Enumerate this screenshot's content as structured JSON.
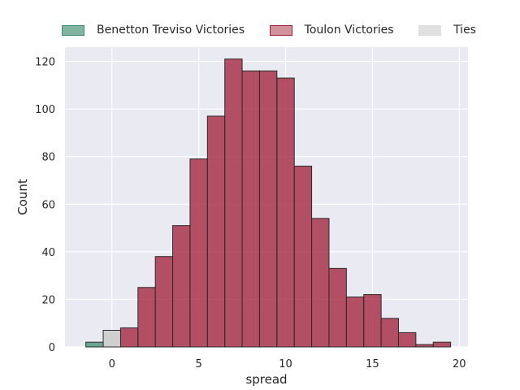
{
  "chart_data": {
    "type": "bar",
    "xlabel": "spread",
    "ylabel": "Count",
    "xlim": [
      -2.7,
      20.5
    ],
    "ylim": [
      0,
      126
    ],
    "xticks": [
      0,
      5,
      10,
      15,
      20
    ],
    "yticks": [
      0,
      20,
      40,
      60,
      80,
      100,
      120
    ],
    "grid": true,
    "legend_position": "top",
    "bin_width": 1,
    "series": [
      {
        "name": "Benetton Treviso Victories",
        "color": "#3e8e6f",
        "bins": [
          {
            "x0": -1.5,
            "x1": -0.5,
            "count": 2
          }
        ]
      },
      {
        "name": "Toulon Victories",
        "color": "#a3233c",
        "bins": [
          {
            "x0": 0.5,
            "x1": 1.5,
            "count": 8
          },
          {
            "x0": 1.5,
            "x1": 2.5,
            "count": 25
          },
          {
            "x0": 2.5,
            "x1": 3.5,
            "count": 38
          },
          {
            "x0": 3.5,
            "x1": 4.5,
            "count": 51
          },
          {
            "x0": 4.5,
            "x1": 5.5,
            "count": 79
          },
          {
            "x0": 5.5,
            "x1": 6.5,
            "count": 97
          },
          {
            "x0": 6.5,
            "x1": 7.5,
            "count": 121
          },
          {
            "x0": 7.5,
            "x1": 8.5,
            "count": 116
          },
          {
            "x0": 8.5,
            "x1": 9.5,
            "count": 116
          },
          {
            "x0": 9.5,
            "x1": 10.5,
            "count": 113
          },
          {
            "x0": 10.5,
            "x1": 11.5,
            "count": 76
          },
          {
            "x0": 11.5,
            "x1": 12.5,
            "count": 54
          },
          {
            "x0": 12.5,
            "x1": 13.5,
            "count": 33
          },
          {
            "x0": 13.5,
            "x1": 14.5,
            "count": 21
          },
          {
            "x0": 14.5,
            "x1": 15.5,
            "count": 22
          },
          {
            "x0": 15.5,
            "x1": 16.5,
            "count": 12
          },
          {
            "x0": 16.5,
            "x1": 17.5,
            "count": 6
          },
          {
            "x0": 17.5,
            "x1": 18.5,
            "count": 1
          },
          {
            "x0": 18.5,
            "x1": 19.5,
            "count": 2
          }
        ]
      },
      {
        "name": "Ties",
        "color": "#d0d0d0",
        "bins": [
          {
            "x0": -0.5,
            "x1": 0.5,
            "count": 7
          }
        ]
      }
    ]
  }
}
